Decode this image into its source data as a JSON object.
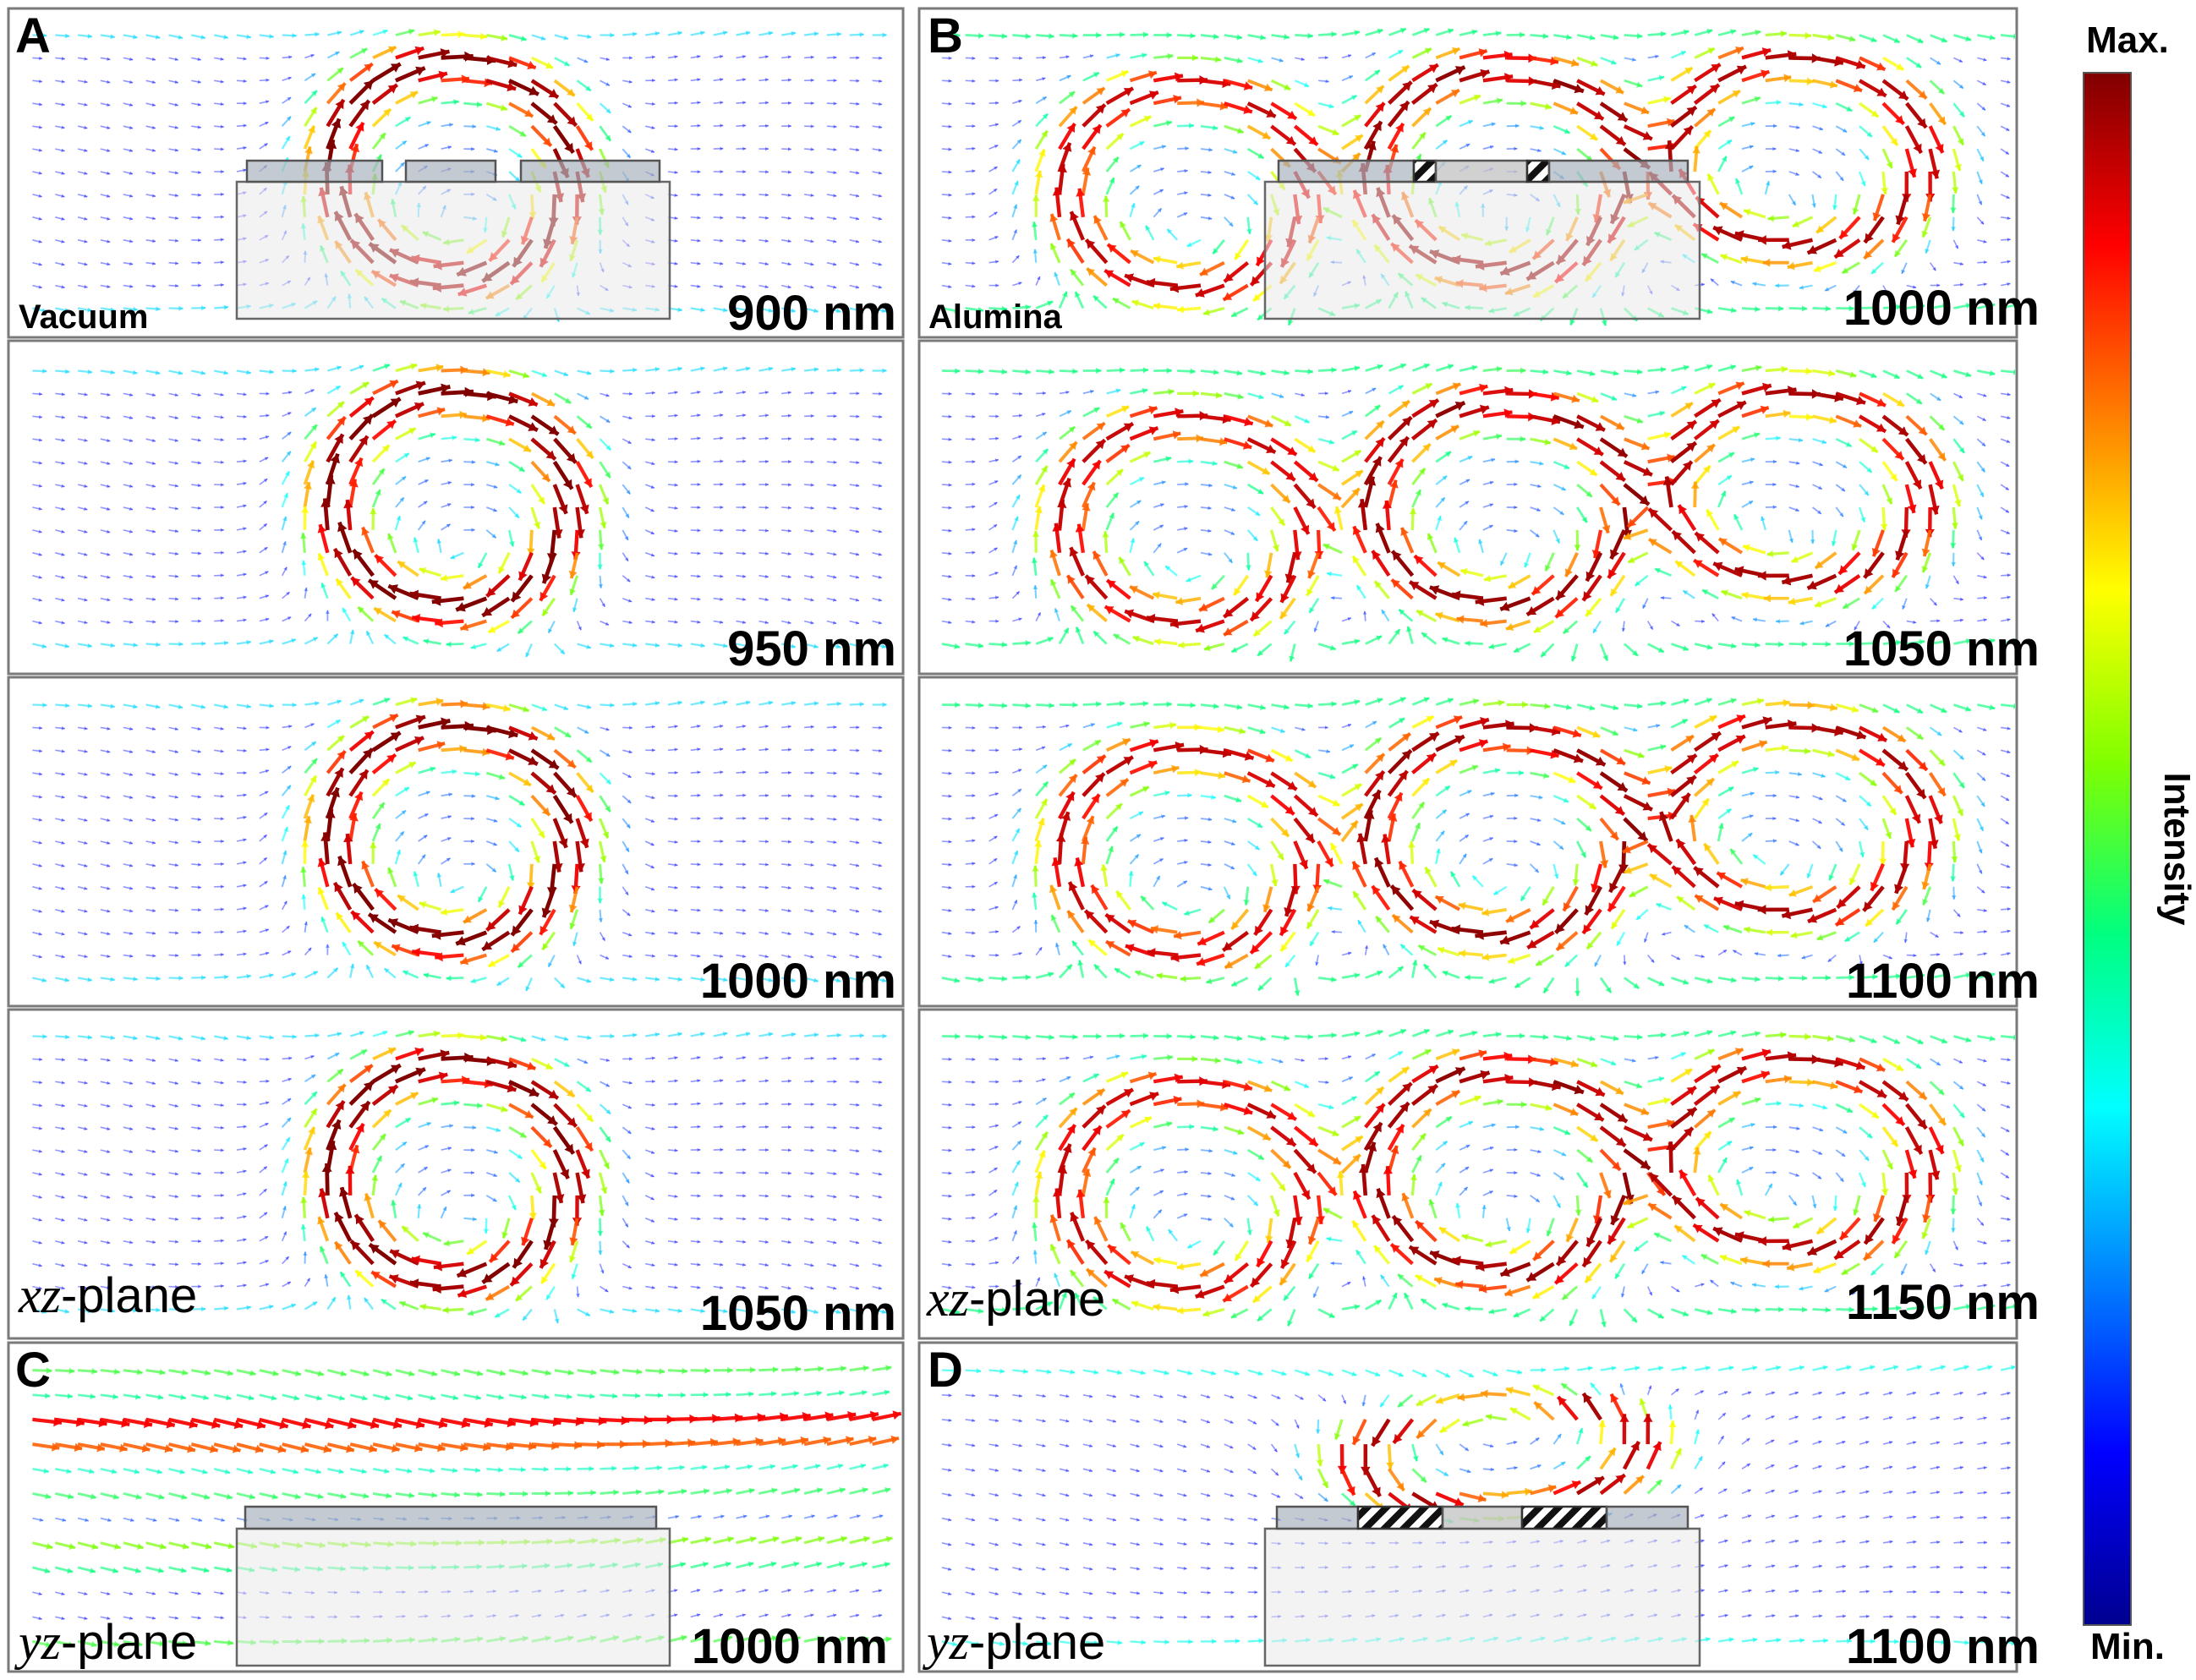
{
  "figure": {
    "colorbar": {
      "max_label": "Max.",
      "min_label": "Min.",
      "axis_label": "Intensity",
      "stops": [
        "#00008f",
        "#0000ff",
        "#0080ff",
        "#00ffff",
        "#00ff80",
        "#80ff00",
        "#ffff00",
        "#ff8000",
        "#ff0000",
        "#800000"
      ]
    },
    "panels": [
      {
        "id": "A1",
        "letter": "A",
        "medium": "Vacuum",
        "wavelength": "900 nm",
        "plane": null,
        "structure": "vacuum"
      },
      {
        "id": "A2",
        "letter": "",
        "medium": "",
        "wavelength": "950 nm",
        "plane": null,
        "structure": "none"
      },
      {
        "id": "A3",
        "letter": "",
        "medium": "",
        "wavelength": "1000 nm",
        "plane": null,
        "structure": "none"
      },
      {
        "id": "A4",
        "letter": "",
        "medium": "",
        "wavelength": "1050 nm",
        "plane": {
          "prefix": "xz",
          "suffix": "-plane"
        },
        "structure": "none"
      },
      {
        "id": "B1",
        "letter": "B",
        "medium": "Alumina",
        "wavelength": "1000 nm",
        "plane": null,
        "structure": "alumina"
      },
      {
        "id": "B2",
        "letter": "",
        "medium": "",
        "wavelength": "1050 nm",
        "plane": null,
        "structure": "none"
      },
      {
        "id": "B3",
        "letter": "",
        "medium": "",
        "wavelength": "1100 nm",
        "plane": null,
        "structure": "none"
      },
      {
        "id": "B4",
        "letter": "",
        "medium": "",
        "wavelength": "1150 nm",
        "plane": {
          "prefix": "xz",
          "suffix": "-plane"
        },
        "structure": "none"
      },
      {
        "id": "C",
        "letter": "C",
        "medium": "",
        "wavelength": "1000 nm",
        "plane": {
          "prefix": "yz",
          "suffix": "-plane"
        },
        "structure": "yz-vacuum"
      },
      {
        "id": "D",
        "letter": "D",
        "medium": "",
        "wavelength": "1100 nm",
        "plane": {
          "prefix": "yz",
          "suffix": "-plane"
        },
        "structure": "yz-alumina"
      }
    ]
  }
}
